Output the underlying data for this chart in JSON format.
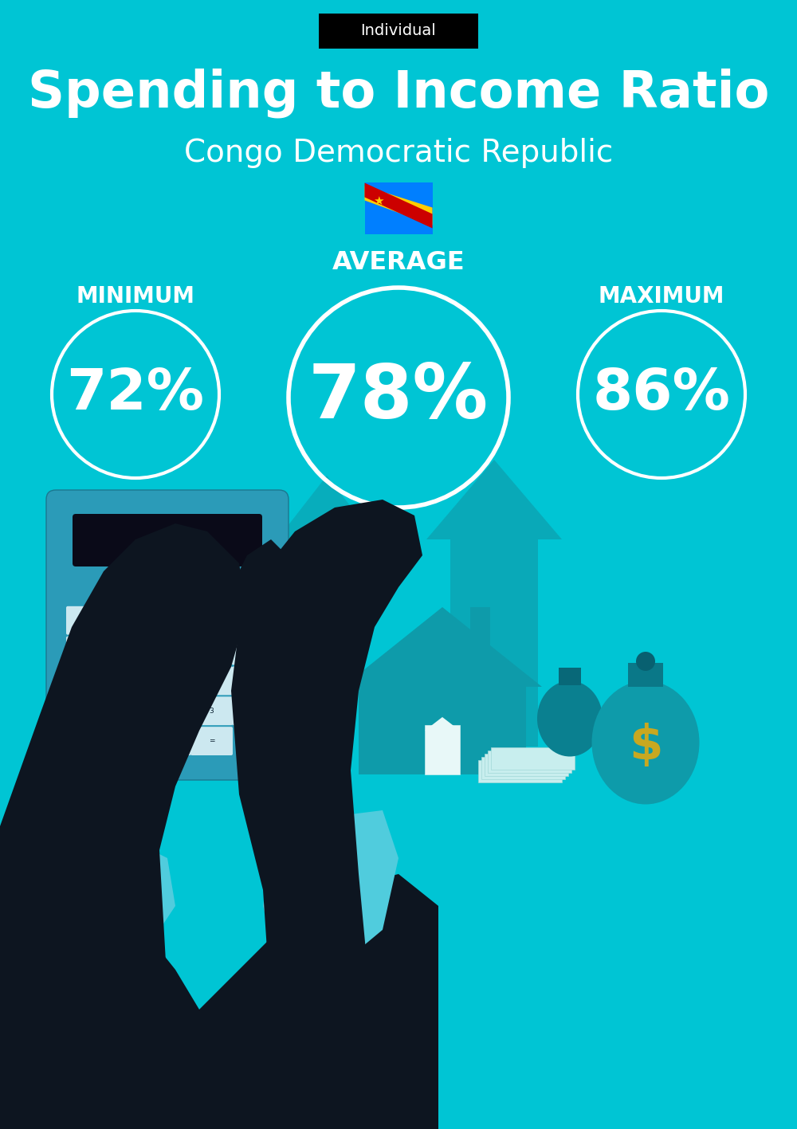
{
  "title": "Spending to Income Ratio",
  "subtitle": "Congo Democratic Republic",
  "tag_label": "Individual",
  "tag_bg": "#000000",
  "tag_text_color": "#ffffff",
  "bg_color": "#00C5D4",
  "text_color": "#ffffff",
  "min_label": "MINIMUM",
  "avg_label": "AVERAGE",
  "max_label": "MAXIMUM",
  "min_value": "72%",
  "avg_value": "78%",
  "max_value": "86%",
  "circle_edge_color": "#ffffff",
  "circle_linewidth": 3,
  "title_fontsize": 46,
  "subtitle_fontsize": 28,
  "label_fontsize": 20,
  "value_fontsize_min": 52,
  "value_fontsize_avg": 68,
  "value_fontsize_max": 52,
  "fig_width": 10.0,
  "fig_height": 14.17
}
